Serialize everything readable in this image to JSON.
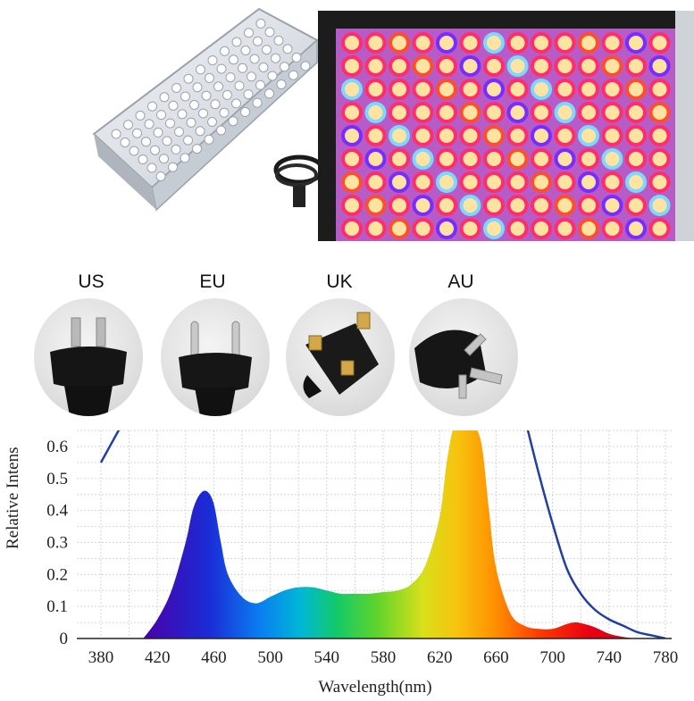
{
  "plugs": [
    {
      "label": "US"
    },
    {
      "label": "EU"
    },
    {
      "label": "UK"
    },
    {
      "label": "AU"
    }
  ],
  "chart_data": {
    "type": "area",
    "xlabel": "Wavelength(nm)",
    "ylabel": "Relative Intens",
    "xticks": [
      380,
      420,
      460,
      500,
      540,
      580,
      620,
      660,
      700,
      740,
      780
    ],
    "yticks": [
      0,
      0.1,
      0.2,
      0.3,
      0.4,
      0.5,
      0.6
    ],
    "ytick_labels": [
      "0",
      "0.1",
      "0.2",
      "0.3",
      "0.4",
      "0.5",
      "0.6"
    ],
    "xlim": [
      380,
      780
    ],
    "ylim": [
      0,
      0.66
    ],
    "grid": true,
    "series": [
      {
        "x": [
          410,
          420,
          430,
          440,
          445,
          450,
          455,
          460,
          465,
          470,
          480,
          490,
          500,
          510,
          520,
          530,
          540,
          550,
          560,
          570,
          580,
          590,
          600,
          610,
          620,
          625,
          630,
          635,
          640,
          645,
          650,
          655,
          660,
          670,
          680,
          690,
          700,
          710,
          715,
          720,
          730,
          740,
          750,
          760,
          770
        ],
        "y": [
          0,
          0.06,
          0.15,
          0.3,
          0.4,
          0.45,
          0.46,
          0.42,
          0.3,
          0.2,
          0.13,
          0.11,
          0.13,
          0.15,
          0.16,
          0.16,
          0.15,
          0.14,
          0.14,
          0.14,
          0.145,
          0.15,
          0.17,
          0.23,
          0.38,
          0.55,
          0.66,
          0.66,
          0.66,
          0.66,
          0.6,
          0.4,
          0.22,
          0.08,
          0.04,
          0.03,
          0.03,
          0.045,
          0.05,
          0.048,
          0.035,
          0.015,
          0.005,
          0,
          0
        ]
      },
      {
        "x": [
          380,
          385,
          390,
          395
        ],
        "y": [
          0.55,
          0.59,
          0.63,
          0.67
        ]
      },
      {
        "x": [
          682,
          690,
          700,
          710,
          720,
          730,
          740,
          750,
          760,
          770,
          780
        ],
        "y": [
          0.66,
          0.52,
          0.36,
          0.22,
          0.14,
          0.09,
          0.06,
          0.04,
          0.02,
          0.01,
          0
        ]
      }
    ]
  }
}
